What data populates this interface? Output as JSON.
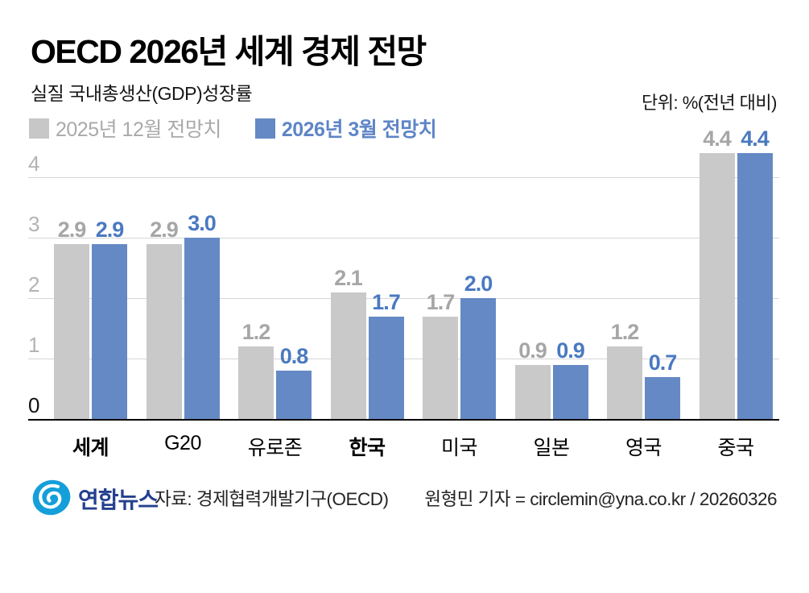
{
  "header": {
    "title": "OECD 2026년 세계 경제 전망",
    "subtitle": "실질 국내총생산(GDP)성장률",
    "unit": "단위: %(전년 대비)"
  },
  "legend": {
    "items": [
      {
        "label": "2025년 12월 전망치",
        "swatch_color": "#c7c7c7",
        "text_color": "#a9a9a9"
      },
      {
        "label": "2026년 3월 전망치",
        "swatch_color": "#6589c4",
        "text_color": "#5e85c6"
      }
    ]
  },
  "chart_data": {
    "type": "bar",
    "title": "OECD 2026년 세계 경제 전망",
    "subtitle": "실질 국내총생산(GDP)성장률",
    "unit": "%(전년 대비)",
    "categories": [
      "세계",
      "G20",
      "유로존",
      "한국",
      "미국",
      "일본",
      "영국",
      "중국"
    ],
    "emphasized_categories": [
      "세계",
      "한국"
    ],
    "series": [
      {
        "name": "2025년 12월 전망치",
        "color": "#c9c9c9",
        "label_color": "#a6a6a6",
        "values": [
          2.9,
          2.9,
          1.2,
          2.1,
          1.7,
          0.9,
          1.2,
          4.4
        ]
      },
      {
        "name": "2026년 3월 전망치",
        "color": "#6589c4",
        "label_color": "#4a79c0",
        "values": [
          2.9,
          3.0,
          0.8,
          1.7,
          2.0,
          0.9,
          0.7,
          4.4
        ]
      }
    ],
    "yticks": [
      0,
      1,
      2,
      3,
      4
    ],
    "ylim": [
      0,
      4.6
    ],
    "grid": true,
    "legend_position": "top-left",
    "xlabel": "",
    "ylabel": ""
  },
  "footer": {
    "brand": "연합뉴스",
    "source": "자료: 경제협력개발기구(OECD)",
    "credit": "원형민 기자 = circlemin@yna.co.kr / 20260326",
    "logo_color": "#149fda",
    "brand_color": "#24408f"
  }
}
